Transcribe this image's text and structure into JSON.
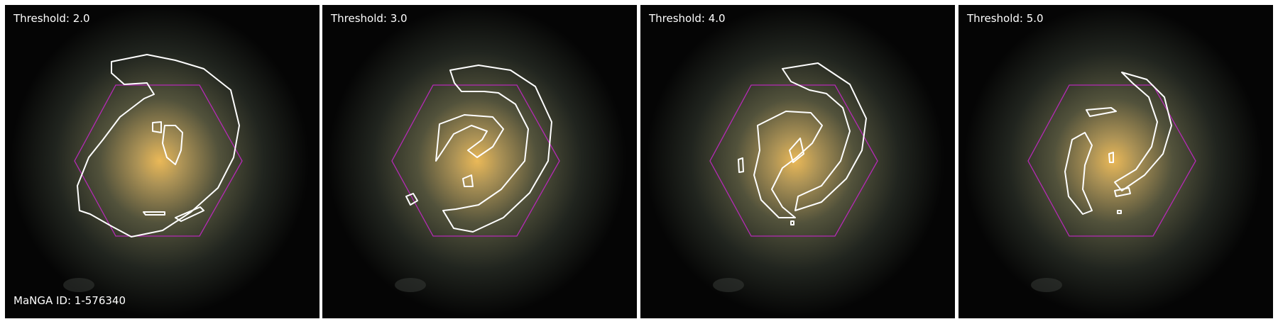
{
  "panels": [
    {
      "threshold_label": "Threshold: 2.0"
    },
    {
      "threshold_label": "Threshold: 3.0"
    },
    {
      "threshold_label": "Threshold: 4.0"
    },
    {
      "threshold_label": "Threshold: 5.0"
    }
  ],
  "manga_id_label": "MaNGA ID: 1-576340",
  "colors": {
    "background": "#050505",
    "contour": "#ffffff",
    "hexagon": "#b52ab5",
    "galaxy_core": "#f5c15a"
  }
}
